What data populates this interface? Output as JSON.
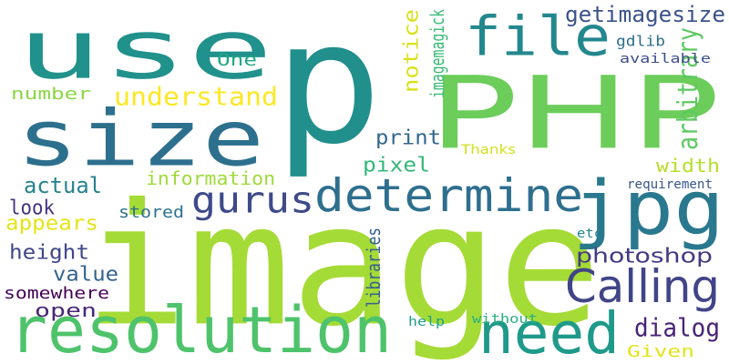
{
  "words": [
    {
      "text": "p",
      "color": "#218f8c"
    },
    {
      "text": "image",
      "color": "#a5db36"
    },
    {
      "text": "PHP",
      "color": "#6ccd5a"
    },
    {
      "text": "use",
      "color": "#21918c"
    },
    {
      "text": "size",
      "color": "#2d708e"
    },
    {
      "text": "resolution",
      "color": "#4ec36b"
    },
    {
      "text": "need",
      "color": "#1f9a8a"
    },
    {
      "text": "determine",
      "color": "#2e6f8e"
    },
    {
      "text": "jpg",
      "color": "#2a788e"
    },
    {
      "text": "file",
      "color": "#23888e"
    },
    {
      "text": "Calling",
      "color": "#414487"
    },
    {
      "text": "gurus",
      "color": "#3e4a89"
    },
    {
      "text": "getimagesize",
      "color": "#3b528b"
    },
    {
      "text": "understand",
      "color": "#fde725"
    },
    {
      "text": "photoshop",
      "color": "#443983"
    },
    {
      "text": "dialog",
      "color": "#482475"
    },
    {
      "text": "arbitrary",
      "color": "#5ec962"
    },
    {
      "text": "notice",
      "color": "#d8e219"
    },
    {
      "text": "print",
      "color": "#31688e"
    },
    {
      "text": "pixel",
      "color": "#35b779"
    },
    {
      "text": "width",
      "color": "#b5de2b"
    },
    {
      "text": "actual",
      "color": "#26828e"
    },
    {
      "text": "information",
      "color": "#9fda3a"
    },
    {
      "text": "appears",
      "color": "#e5e419"
    },
    {
      "text": "height",
      "color": "#3f4788"
    },
    {
      "text": "stored",
      "color": "#2c728e"
    },
    {
      "text": "value",
      "color": "#33638d"
    },
    {
      "text": "look",
      "color": "#46337e"
    },
    {
      "text": "number",
      "color": "#8bd646"
    },
    {
      "text": "somewhere",
      "color": "#440154"
    },
    {
      "text": "open",
      "color": "#482878"
    },
    {
      "text": "One",
      "color": "#22a884"
    },
    {
      "text": "imagemagick",
      "color": "#3aba76"
    },
    {
      "text": "gdlib",
      "color": "#2e6e8e"
    },
    {
      "text": "available",
      "color": "#3d4e8a"
    },
    {
      "text": "requirement",
      "color": "#39568c"
    },
    {
      "text": "libraries",
      "color": "#35608d"
    },
    {
      "text": "Thanks",
      "color": "#d0e11c"
    },
    {
      "text": "etc",
      "color": "#25838e"
    },
    {
      "text": "help",
      "color": "#1fa088"
    },
    {
      "text": "without",
      "color": "#2ab07f"
    },
    {
      "text": "Given",
      "color": "#e2e418"
    }
  ]
}
